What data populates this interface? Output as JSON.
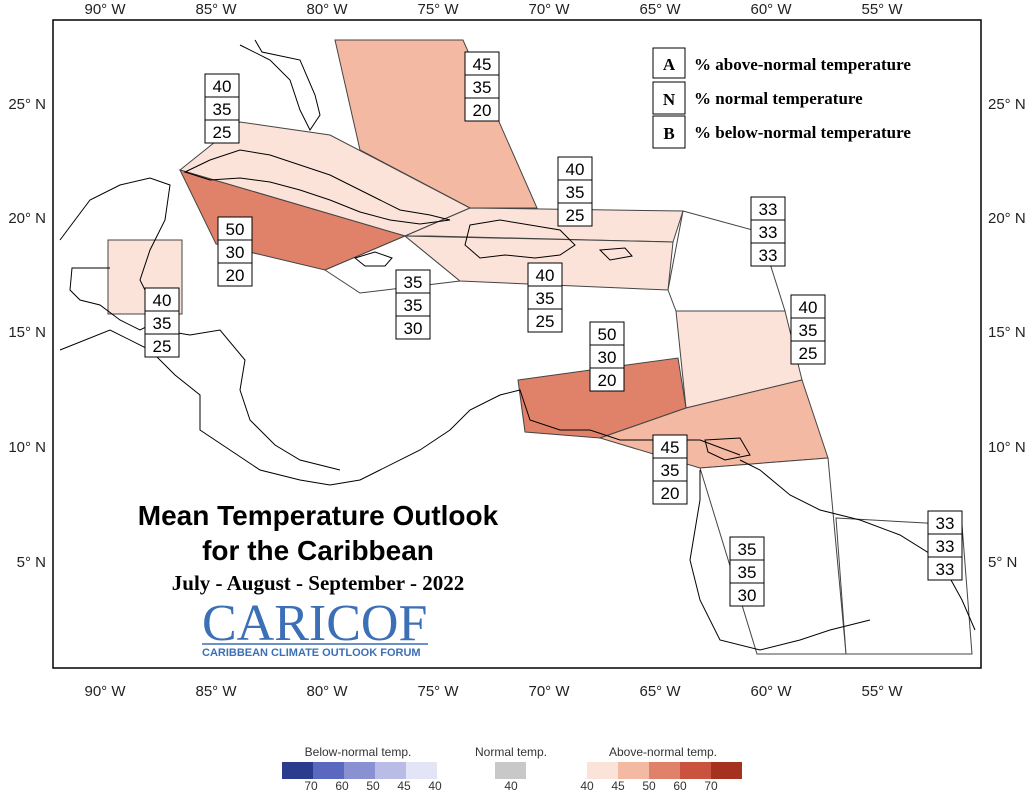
{
  "map": {
    "title_line1": "Mean Temperature Outlook",
    "title_line2": "for the Caribbean",
    "period": "July - August - September - 2022",
    "logo_text": "CARICOF",
    "logo_subtitle": "CARIBBEAN CLIMATE OUTLOOK FORUM",
    "lon_labels": [
      "90° W",
      "85° W",
      "80° W",
      "75° W",
      "70° W",
      "65° W",
      "60° W",
      "55° W"
    ],
    "lat_labels": [
      "25° N",
      "20° N",
      "15° N",
      "10° N",
      "5° N"
    ]
  },
  "key": [
    {
      "letter": "A",
      "text": "% above-normal temperature"
    },
    {
      "letter": "N",
      "text": "% normal temperature"
    },
    {
      "letter": "B",
      "text": "% below-normal temperature"
    }
  ],
  "regions": [
    {
      "name": "bahamas",
      "A": "45",
      "N": "35",
      "B": "20",
      "color": "#f4b9a3"
    },
    {
      "name": "cuba",
      "A": "40",
      "N": "35",
      "B": "25",
      "color": "#fbe3da"
    },
    {
      "name": "cayman-jamaica-west",
      "A": "50",
      "N": "30",
      "B": "20",
      "color": "#e0826a"
    },
    {
      "name": "belize",
      "A": "40",
      "N": "35",
      "B": "25",
      "color": "#fbe3da"
    },
    {
      "name": "jamaica",
      "A": "35",
      "N": "35",
      "B": "30",
      "color": "#ffffff"
    },
    {
      "name": "turks-caicos-hispaniola-north",
      "A": "40",
      "N": "35",
      "B": "25",
      "color": "#fbe3da"
    },
    {
      "name": "hispaniola-puerto-rico",
      "A": "40",
      "N": "35",
      "B": "25",
      "color": "#fbe3da"
    },
    {
      "name": "northern-leewards",
      "A": "33",
      "N": "33",
      "B": "33",
      "color": "#ffffff"
    },
    {
      "name": "windward-islands",
      "A": "40",
      "N": "35",
      "B": "25",
      "color": "#fbe3da"
    },
    {
      "name": "abc-islands",
      "A": "50",
      "N": "30",
      "B": "20",
      "color": "#e0826a"
    },
    {
      "name": "trinidad-tobago",
      "A": "45",
      "N": "35",
      "B": "20",
      "color": "#f4b9a3"
    },
    {
      "name": "guyana",
      "A": "35",
      "N": "35",
      "B": "30",
      "color": "#ffffff"
    },
    {
      "name": "suriname-french-guiana",
      "A": "33",
      "N": "33",
      "B": "33",
      "color": "#ffffff"
    }
  ],
  "scale": {
    "below_title": "Below-normal temp.",
    "normal_title": "Normal temp.",
    "above_title": "Above-normal temp.",
    "below_ticks": [
      "70",
      "60",
      "50",
      "45",
      "40"
    ],
    "normal_tick": "40",
    "above_ticks": [
      "40",
      "45",
      "50",
      "60",
      "70"
    ],
    "below_colors": [
      "#2b3c8c",
      "#5a68bf",
      "#8a91d3",
      "#b9bde6",
      "#e3e5f7"
    ],
    "normal_color": "#c8c8c8",
    "above_colors": [
      "#fbe3da",
      "#f4b9a3",
      "#e0826a",
      "#c9533e",
      "#a5321f"
    ]
  }
}
